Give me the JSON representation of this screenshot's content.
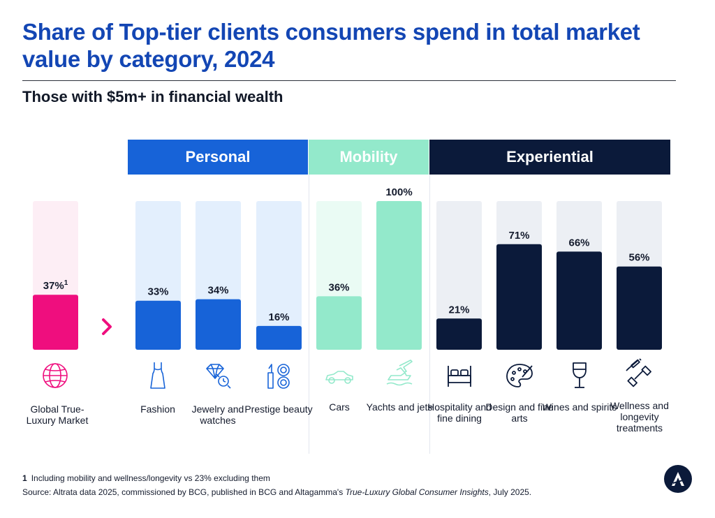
{
  "chart_data": {
    "type": "bar",
    "title": "Share of Top-tier clients consumers spend in total market value by category, 2024",
    "subtitle": "Those with $5m+ in financial wealth",
    "ylim": [
      0,
      100
    ],
    "groups": [
      {
        "name": "Personal",
        "color": "#1763d8"
      },
      {
        "name": "Mobility",
        "color": "#93e9cb"
      },
      {
        "name": "Experiential",
        "color": "#0b1a3a"
      }
    ],
    "categories": [
      "Global True-Luxury Market",
      "Fashion",
      "Jewelry and watches",
      "Prestige beauty",
      "Cars",
      "Yachts and jets",
      "Hospitality and fine dining",
      "Design and fine arts",
      "Wines and spirits",
      "Wellness and longevity treatments"
    ],
    "values": [
      37,
      33,
      34,
      16,
      36,
      100,
      21,
      71,
      66,
      56
    ],
    "value_labels": [
      "37%",
      "33%",
      "34%",
      "16%",
      "36%",
      "100%",
      "21%",
      "71%",
      "66%",
      "56%"
    ],
    "footnote_markers": [
      "1",
      "",
      "",
      "",
      "",
      "",
      "",
      "",
      "",
      ""
    ],
    "bar_colors": [
      "#ef0e7e",
      "#1763d8",
      "#1763d8",
      "#1763d8",
      "#93e9cb",
      "#93e9cb",
      "#0b1a3a",
      "#0b1a3a",
      "#0b1a3a",
      "#0b1a3a"
    ],
    "track_colors": [
      "#fdeef5",
      "#e3effd",
      "#e3effd",
      "#e3effd",
      "#eafbf4",
      "#eafbf4",
      "#eceff4",
      "#eceff4",
      "#eceff4",
      "#eceff4"
    ]
  },
  "icons": [
    "globe-icon",
    "dress-icon",
    "jewelry-watch-icon",
    "beauty-products-icon",
    "car-icon",
    "yacht-jet-icon",
    "bed-icon",
    "palette-icon",
    "wine-glass-icon",
    "dumbbell-syringe-icon"
  ],
  "footnote": {
    "marker": "1",
    "text": "Including mobility and wellness/longevity vs 23% excluding them"
  },
  "source": {
    "prefix": "Source: Altrata data 2025, commissioned by BCG, published in BCG and Altagamma's ",
    "italic": "True-Luxury Global Consumer Insights",
    "suffix": ", July 2025."
  }
}
